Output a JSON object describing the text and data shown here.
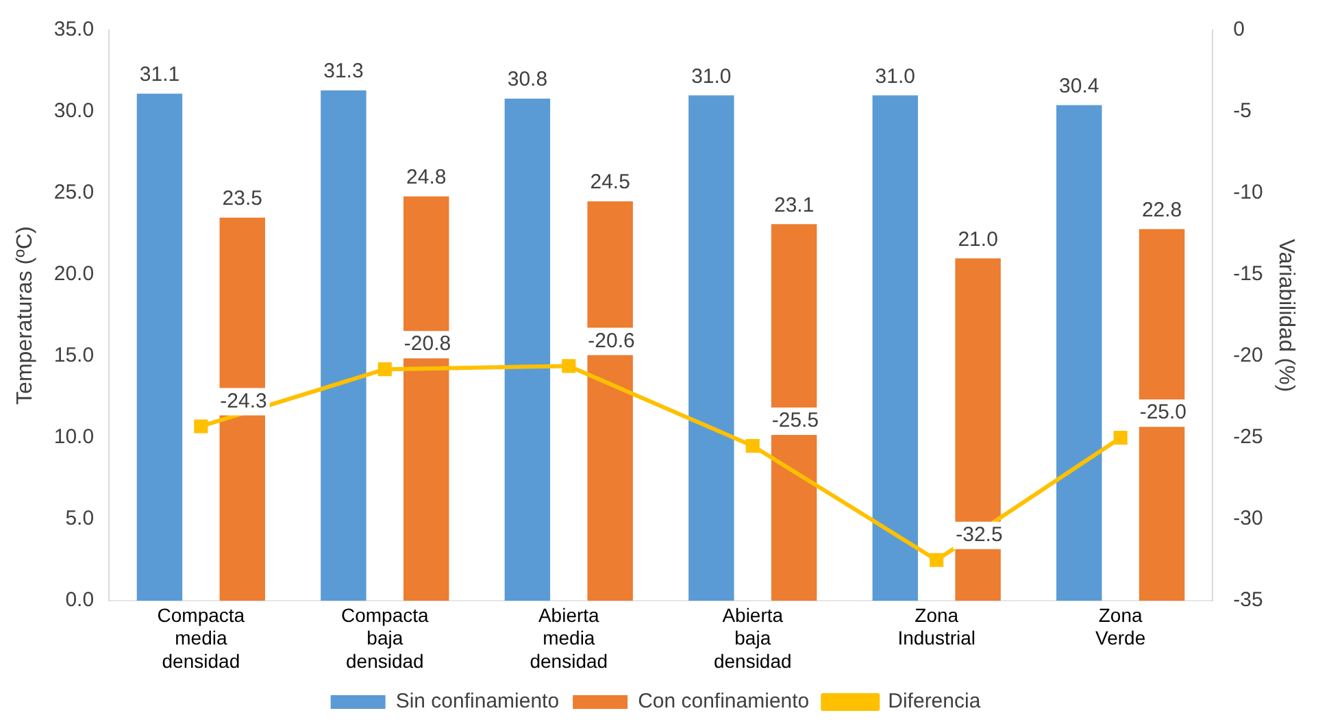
{
  "chart_data": {
    "type": "bar",
    "categories": [
      "Compacta media densidad",
      "Compacta baja densidad",
      "Abierta media densidad",
      "Abierta baja densidad",
      "Zona Industrial",
      "Zona Verde"
    ],
    "series": [
      {
        "name": "Sin confinamiento",
        "color": "#5b9bd5",
        "values": [
          31.1,
          31.3,
          30.8,
          31.0,
          31.0,
          30.4
        ],
        "value_labels": [
          "31.1",
          "31.3",
          "30.8",
          "31.0",
          "31.0",
          "30.4"
        ]
      },
      {
        "name": "Con confinamiento",
        "color": "#ed7d31",
        "values": [
          23.5,
          24.8,
          24.5,
          23.1,
          21.0,
          22.8
        ],
        "value_labels": [
          "23.5",
          "24.8",
          "24.5",
          "23.1",
          "21.0",
          "22.8"
        ]
      },
      {
        "name": "Diferencia",
        "type": "line",
        "axis": "y2",
        "color": "#ffc000",
        "marker": "square",
        "values": [
          -24.3,
          -20.8,
          -20.6,
          -25.5,
          -32.5,
          -25.0
        ],
        "value_labels": [
          "-24.3",
          "-20.8",
          "-20.6",
          "-25.5",
          "-32.5",
          "-25.0"
        ]
      }
    ],
    "ylabel": "Temperaturas (ºC)",
    "y2label": "Variabilidad (%)",
    "ylim": [
      0,
      35
    ],
    "yticks": [
      {
        "value": 0,
        "label": "0.0"
      },
      {
        "value": 5,
        "label": "5.0"
      },
      {
        "value": 10,
        "label": "10.0"
      },
      {
        "value": 15,
        "label": "15.0"
      },
      {
        "value": 20,
        "label": "20.0"
      },
      {
        "value": 25,
        "label": "25.0"
      },
      {
        "value": 30,
        "label": "30.0"
      },
      {
        "value": 35,
        "label": "35.0"
      }
    ],
    "y2lim": [
      -35,
      0
    ],
    "y2ticks": [
      -35,
      -30,
      -25,
      -20,
      -15,
      -10,
      -5,
      0
    ],
    "grid": false,
    "legend": "bottom"
  }
}
